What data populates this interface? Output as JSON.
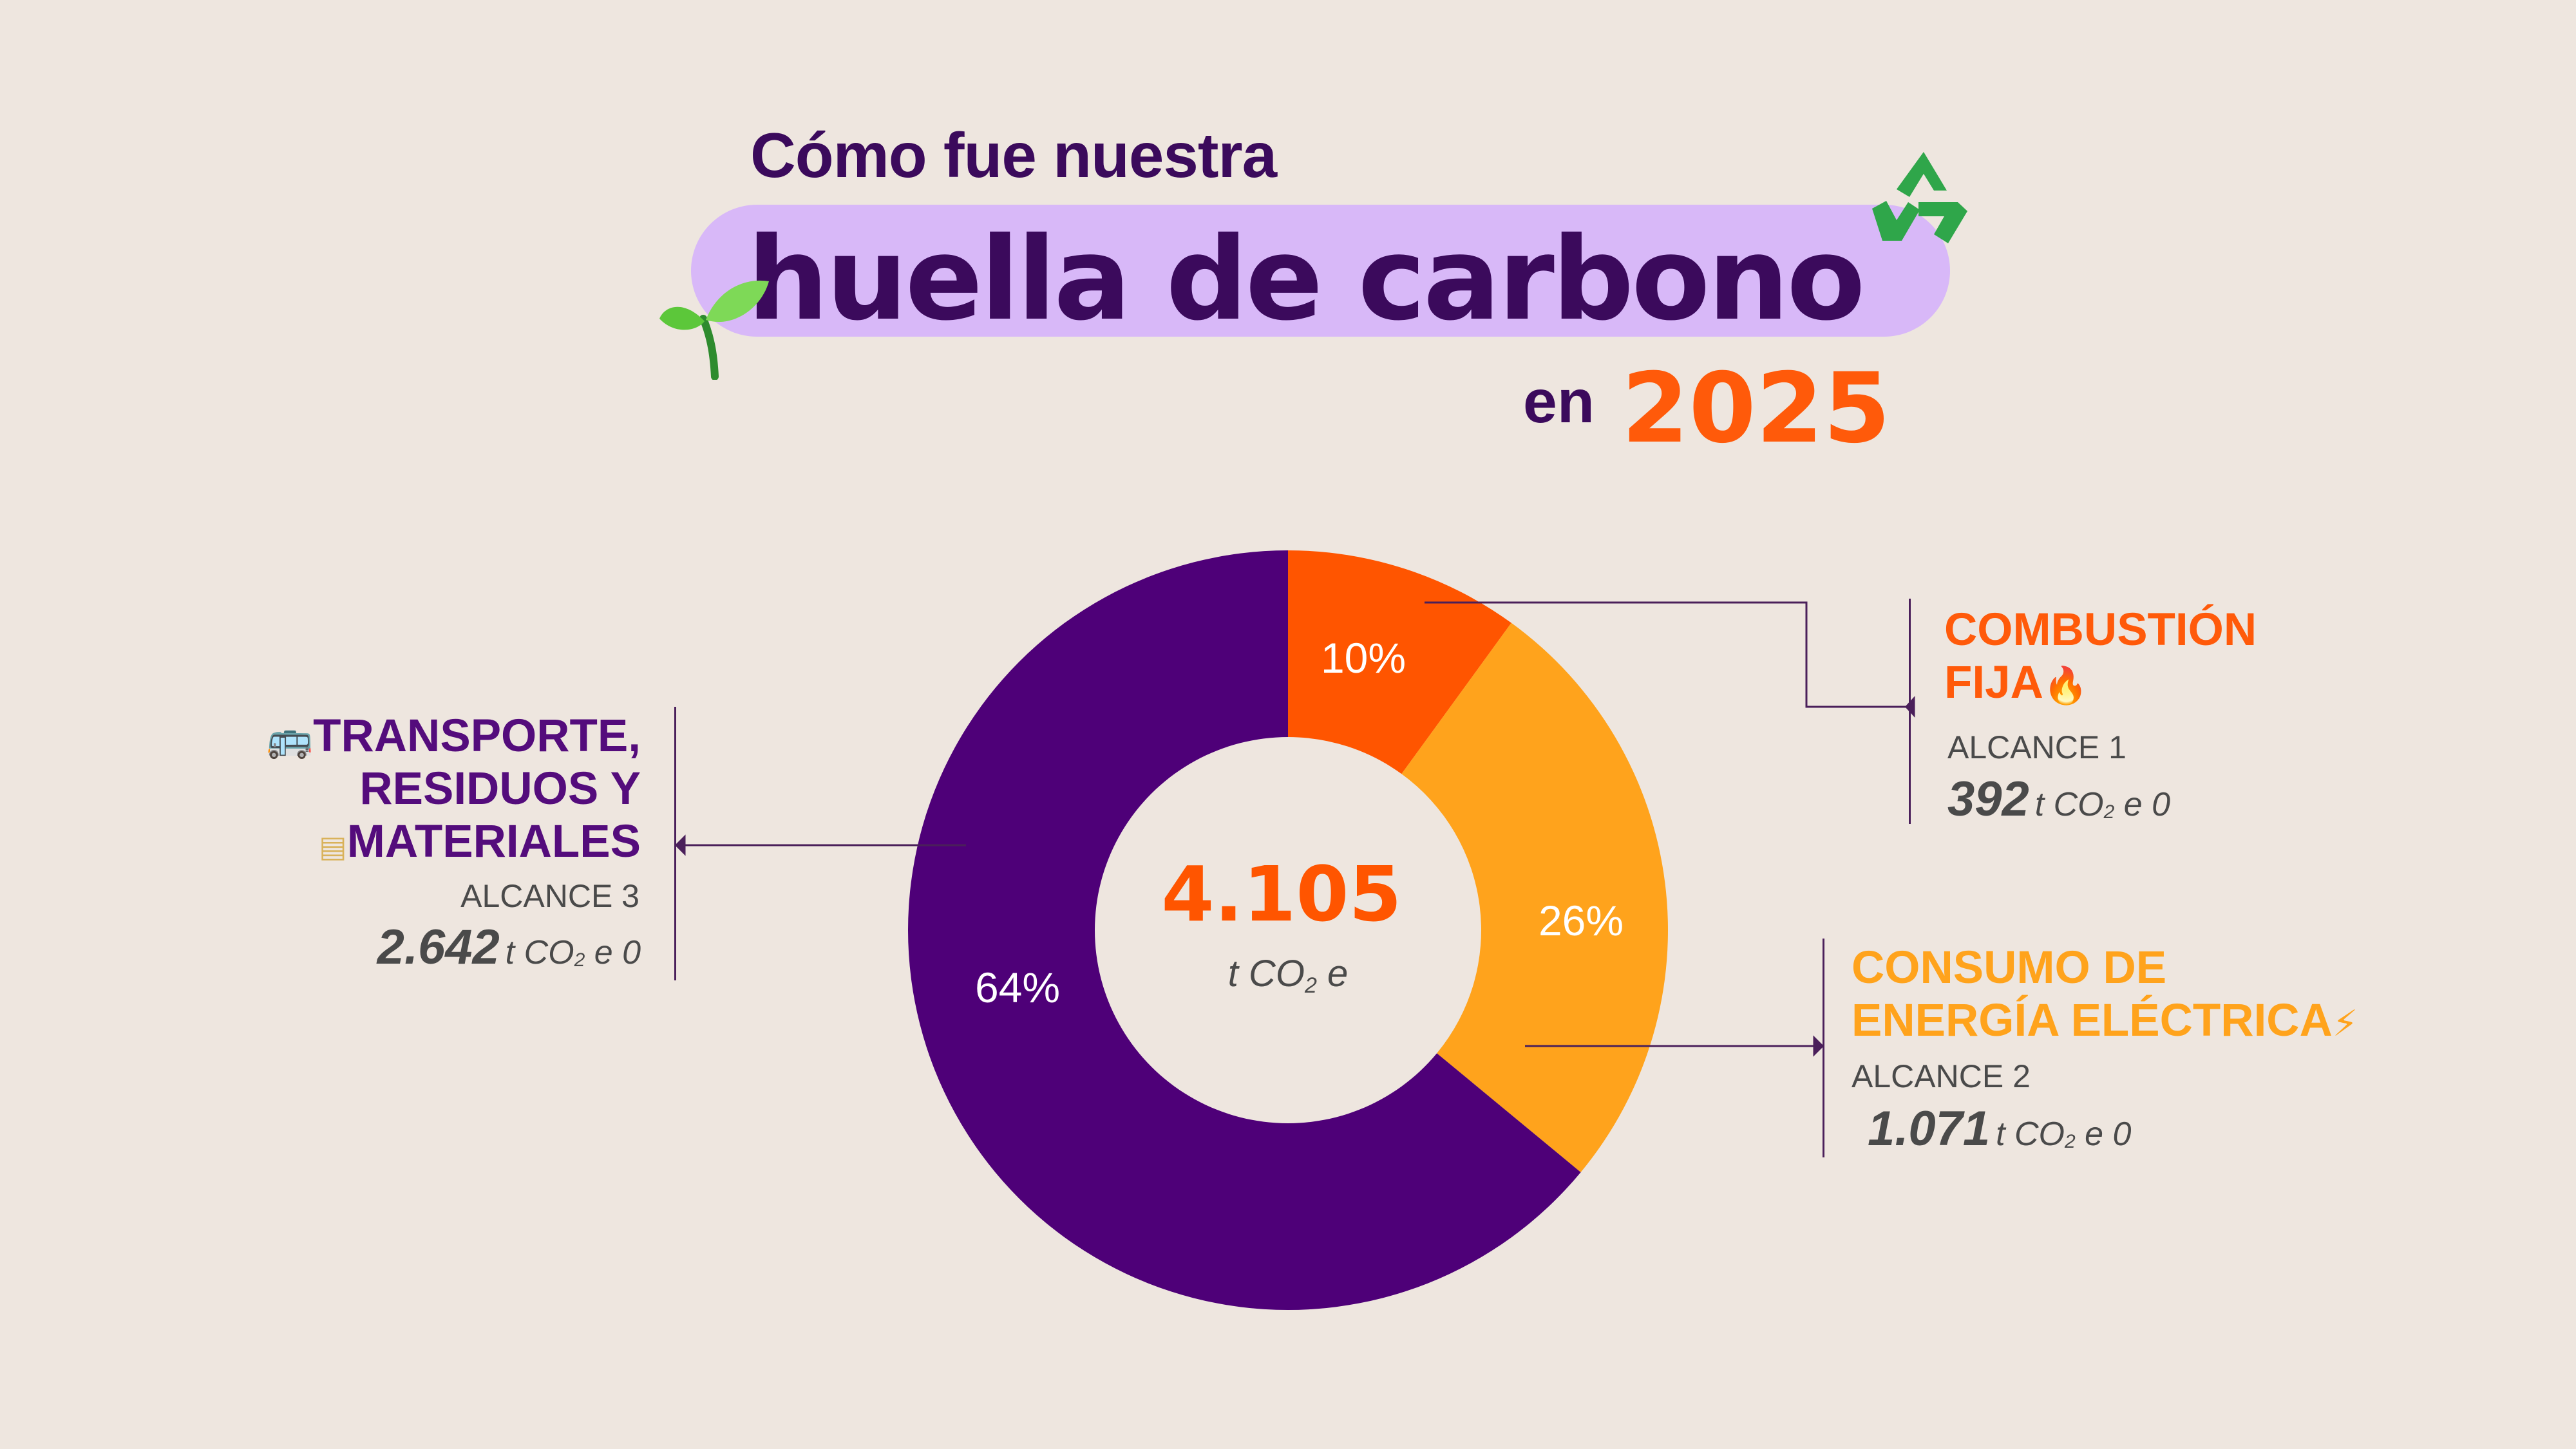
{
  "header": {
    "line1": "Cómo fue nuestra",
    "line2": "huella de carbono",
    "en": "en",
    "year": "2025"
  },
  "icons": {
    "sprout": "seedling-icon",
    "recycle": "recycle-icon",
    "bus": "bus-icon",
    "note": "note-icon",
    "fire": "fire-icon",
    "bolt": "lightning-icon"
  },
  "colors": {
    "background": "#EEE6DF",
    "purple": "#4E0078",
    "orange": "#FF5500",
    "amber": "#FFA31C",
    "pill": "#D8B8F8",
    "dark_text": "#3B0A5C"
  },
  "chart_data": {
    "type": "pie",
    "variant": "donut",
    "center": {
      "value": "4.105",
      "unit_prefix": "t CO",
      "unit_sub": "2",
      "unit_suffix": " e"
    },
    "slices": [
      {
        "label": "10%",
        "value": 10,
        "color": "#FF5500"
      },
      {
        "label": "26%",
        "value": 26,
        "color": "#FFA31C"
      },
      {
        "label": "64%",
        "value": 64,
        "color": "#4E0078"
      }
    ]
  },
  "categories": {
    "combustion": {
      "title1": "COMBUSTIÓN",
      "title2": "FIJA",
      "scope": "ALCANCE 1",
      "amount": "392",
      "unit_prefix": "t CO",
      "unit_sub": "2",
      "unit_suffix": " e 0"
    },
    "electric": {
      "title1": "CONSUMO DE",
      "title2": "ENERGÍA ELÉCTRICA",
      "scope": "ALCANCE 2",
      "amount": "1.071",
      "unit_prefix": "t CO",
      "unit_sub": "2",
      "unit_suffix": " e 0"
    },
    "transport": {
      "title1": "TRANSPORTE,",
      "title2": "RESIDUOS Y",
      "title3": "MATERIALES",
      "scope": "ALCANCE 3",
      "amount": "2.642",
      "unit_prefix": "t CO",
      "unit_sub": "2",
      "unit_suffix": " e 0"
    }
  }
}
